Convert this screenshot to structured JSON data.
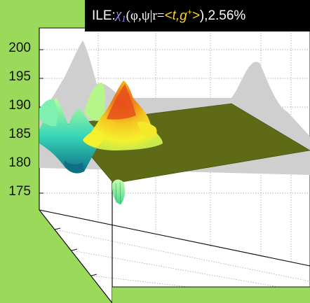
{
  "title": {
    "prefix": "ILE: ",
    "chi": "χ",
    "chi_sub": "1",
    "args": "(φ,ψ|r=",
    "lt": "<",
    "t": "t",
    "sep": ", ",
    "g": "g",
    "g_sup": "+",
    "gt": ">",
    "close": "), ",
    "percent": "2.56%"
  },
  "z_ticks": [
    "200",
    "195",
    "190",
    "185",
    "180",
    "175"
  ],
  "colors": {
    "background": "#9bd95a",
    "plane": "#5e6a16",
    "shadow": "#cfcfcf",
    "peak_high": "#e8501a",
    "peak_mid": "#f3e92a",
    "peak_low": "#7ff0b0",
    "valley": "#0e7f8f"
  }
}
